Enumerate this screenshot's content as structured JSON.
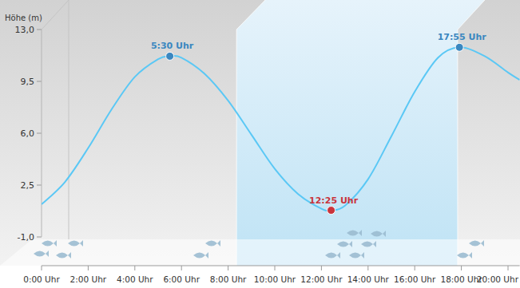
{
  "chart_data": {
    "type": "line",
    "y_label": "Höhe (m)",
    "x": [
      0,
      1,
      2,
      3,
      4,
      5,
      5.5,
      6,
      7,
      8,
      9,
      10,
      11,
      12,
      12.4167,
      13,
      14,
      15,
      16,
      17,
      17.9167,
      19,
      20,
      20.5
    ],
    "values": [
      1.2,
      2.7,
      5.0,
      7.6,
      9.8,
      11.0,
      11.2,
      11.1,
      10.0,
      8.2,
      5.9,
      3.6,
      1.9,
      0.9,
      0.8,
      1.1,
      2.9,
      5.8,
      8.8,
      11.1,
      11.8,
      11.2,
      10.1,
      9.6
    ],
    "color": "#5bc8f5",
    "xlim": [
      0,
      20.5
    ],
    "xticks": [
      {
        "value": 0,
        "label": "0:00 Uhr"
      },
      {
        "value": 2,
        "label": "2:00 Uhr"
      },
      {
        "value": 4,
        "label": "4:00 Uhr"
      },
      {
        "value": 6,
        "label": "6:00 Uhr"
      },
      {
        "value": 8,
        "label": "8:00 Uhr"
      },
      {
        "value": 10,
        "label": "10:00 Uhr"
      },
      {
        "value": 12,
        "label": "12:00 Uhr"
      },
      {
        "value": 14,
        "label": "14:00 Uhr"
      },
      {
        "value": 16,
        "label": "16:00 Uhr"
      },
      {
        "value": 18,
        "label": "18:00 Uhr"
      },
      {
        "value": 20,
        "label": "20:00 Uhr"
      }
    ],
    "ylim": [
      -1,
      13
    ],
    "yticks": [
      {
        "value": -1,
        "label": "-1,0"
      },
      {
        "value": 2.5,
        "label": "2,5"
      },
      {
        "value": 6,
        "label": "6,0"
      },
      {
        "value": 9.5,
        "label": "9,5"
      },
      {
        "value": 13,
        "label": "13,0"
      }
    ],
    "grid": false,
    "highlight": [
      8.36,
      17.84
    ],
    "annotations": [
      {
        "x": 5.5,
        "y": 11.2,
        "text": "5:30 Uhr",
        "color": "#3a87c0"
      },
      {
        "x": 12.4167,
        "y": 0.8,
        "text": "12:25 Uhr",
        "color": "#c9343c"
      },
      {
        "x": 17.9167,
        "y": 11.8,
        "text": "17:55 Uhr",
        "color": "#3a87c0"
      }
    ]
  }
}
